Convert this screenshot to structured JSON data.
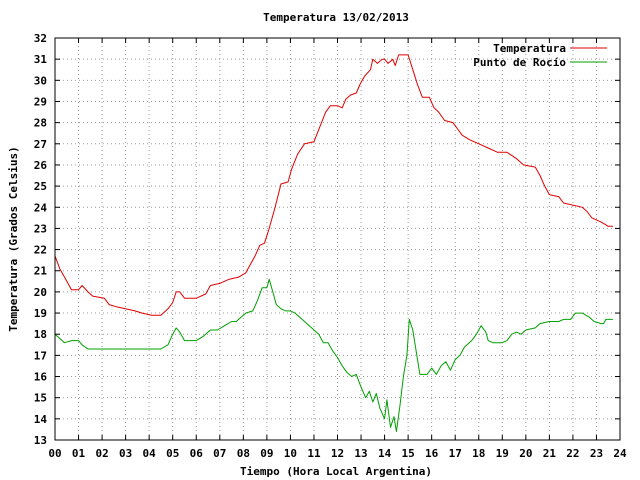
{
  "chart_data": {
    "type": "line",
    "title": "Temperatura 13/02/2013",
    "xlabel": "Tiempo (Hora Local Argentina)",
    "ylabel": "Temperatura (Grados Celsius)",
    "xlim": [
      0,
      24
    ],
    "ylim": [
      13,
      32
    ],
    "x_ticks": [
      "00",
      "01",
      "02",
      "03",
      "04",
      "05",
      "06",
      "07",
      "08",
      "09",
      "10",
      "11",
      "12",
      "13",
      "14",
      "15",
      "16",
      "17",
      "18",
      "19",
      "20",
      "21",
      "22",
      "23",
      "24"
    ],
    "y_ticks": [
      13,
      14,
      15,
      16,
      17,
      18,
      19,
      20,
      21,
      22,
      23,
      24,
      25,
      26,
      27,
      28,
      29,
      30,
      31,
      32
    ],
    "grid": true,
    "legend_position": "top-right",
    "series": [
      {
        "name": "Temperatura",
        "color": "#e00000",
        "points": [
          [
            0.0,
            21.7
          ],
          [
            0.2,
            21.1
          ],
          [
            0.5,
            20.5
          ],
          [
            0.7,
            20.1
          ],
          [
            1.0,
            20.1
          ],
          [
            1.15,
            20.3
          ],
          [
            1.4,
            20.0
          ],
          [
            1.6,
            19.8
          ],
          [
            2.1,
            19.7
          ],
          [
            2.3,
            19.4
          ],
          [
            2.6,
            19.3
          ],
          [
            3.0,
            19.2
          ],
          [
            3.4,
            19.1
          ],
          [
            3.7,
            19.0
          ],
          [
            4.1,
            18.9
          ],
          [
            4.5,
            18.9
          ],
          [
            4.8,
            19.2
          ],
          [
            5.0,
            19.5
          ],
          [
            5.15,
            20.0
          ],
          [
            5.3,
            20.0
          ],
          [
            5.5,
            19.7
          ],
          [
            6.0,
            19.7
          ],
          [
            6.4,
            19.9
          ],
          [
            6.6,
            20.3
          ],
          [
            7.0,
            20.4
          ],
          [
            7.4,
            20.6
          ],
          [
            7.8,
            20.7
          ],
          [
            8.1,
            20.9
          ],
          [
            8.3,
            21.3
          ],
          [
            8.5,
            21.7
          ],
          [
            8.7,
            22.2
          ],
          [
            8.9,
            22.3
          ],
          [
            9.1,
            23.0
          ],
          [
            9.35,
            24.0
          ],
          [
            9.6,
            25.1
          ],
          [
            9.9,
            25.2
          ],
          [
            10.05,
            25.8
          ],
          [
            10.3,
            26.5
          ],
          [
            10.6,
            27.0
          ],
          [
            11.0,
            27.1
          ],
          [
            11.25,
            27.8
          ],
          [
            11.5,
            28.5
          ],
          [
            11.7,
            28.8
          ],
          [
            12.0,
            28.8
          ],
          [
            12.2,
            28.7
          ],
          [
            12.35,
            29.1
          ],
          [
            12.55,
            29.3
          ],
          [
            12.8,
            29.4
          ],
          [
            12.95,
            29.8
          ],
          [
            13.15,
            30.2
          ],
          [
            13.4,
            30.5
          ],
          [
            13.5,
            31.0
          ],
          [
            13.7,
            30.8
          ],
          [
            13.9,
            31.0
          ],
          [
            14.0,
            31.0
          ],
          [
            14.15,
            30.8
          ],
          [
            14.35,
            31.0
          ],
          [
            14.45,
            30.7
          ],
          [
            14.6,
            31.2
          ],
          [
            15.0,
            31.2
          ],
          [
            15.2,
            30.5
          ],
          [
            15.4,
            29.8
          ],
          [
            15.6,
            29.2
          ],
          [
            15.9,
            29.2
          ],
          [
            16.1,
            28.7
          ],
          [
            16.3,
            28.5
          ],
          [
            16.55,
            28.1
          ],
          [
            16.9,
            28.0
          ],
          [
            17.1,
            27.7
          ],
          [
            17.3,
            27.4
          ],
          [
            17.6,
            27.2
          ],
          [
            18.0,
            27.0
          ],
          [
            18.4,
            26.8
          ],
          [
            18.8,
            26.6
          ],
          [
            19.2,
            26.6
          ],
          [
            19.6,
            26.3
          ],
          [
            19.9,
            26.0
          ],
          [
            20.4,
            25.9
          ],
          [
            20.6,
            25.5
          ],
          [
            20.8,
            25.0
          ],
          [
            21.0,
            24.6
          ],
          [
            21.4,
            24.5
          ],
          [
            21.6,
            24.2
          ],
          [
            22.0,
            24.1
          ],
          [
            22.4,
            24.0
          ],
          [
            22.6,
            23.8
          ],
          [
            22.8,
            23.5
          ],
          [
            23.2,
            23.3
          ],
          [
            23.5,
            23.1
          ],
          [
            23.7,
            23.1
          ]
        ]
      },
      {
        "name": "Punto de Rocío",
        "color": "#00a000",
        "points": [
          [
            0.0,
            18.0
          ],
          [
            0.2,
            17.8
          ],
          [
            0.4,
            17.6
          ],
          [
            0.7,
            17.7
          ],
          [
            1.0,
            17.7
          ],
          [
            1.15,
            17.5
          ],
          [
            1.4,
            17.3
          ],
          [
            1.8,
            17.3
          ],
          [
            2.2,
            17.3
          ],
          [
            2.5,
            17.3
          ],
          [
            3.0,
            17.3
          ],
          [
            3.5,
            17.3
          ],
          [
            4.0,
            17.3
          ],
          [
            4.5,
            17.3
          ],
          [
            4.8,
            17.5
          ],
          [
            5.0,
            18.0
          ],
          [
            5.15,
            18.3
          ],
          [
            5.3,
            18.1
          ],
          [
            5.5,
            17.7
          ],
          [
            6.0,
            17.7
          ],
          [
            6.3,
            17.9
          ],
          [
            6.6,
            18.2
          ],
          [
            6.9,
            18.2
          ],
          [
            7.2,
            18.4
          ],
          [
            7.5,
            18.6
          ],
          [
            7.7,
            18.6
          ],
          [
            7.9,
            18.8
          ],
          [
            8.1,
            19.0
          ],
          [
            8.4,
            19.1
          ],
          [
            8.6,
            19.6
          ],
          [
            8.8,
            20.2
          ],
          [
            9.0,
            20.2
          ],
          [
            9.1,
            20.6
          ],
          [
            9.25,
            20.0
          ],
          [
            9.4,
            19.4
          ],
          [
            9.6,
            19.2
          ],
          [
            9.8,
            19.1
          ],
          [
            10.0,
            19.1
          ],
          [
            10.2,
            19.0
          ],
          [
            10.4,
            18.8
          ],
          [
            10.6,
            18.6
          ],
          [
            10.8,
            18.4
          ],
          [
            11.0,
            18.2
          ],
          [
            11.2,
            18.0
          ],
          [
            11.4,
            17.6
          ],
          [
            11.6,
            17.6
          ],
          [
            11.8,
            17.2
          ],
          [
            12.0,
            16.9
          ],
          [
            12.2,
            16.5
          ],
          [
            12.4,
            16.2
          ],
          [
            12.6,
            16.0
          ],
          [
            12.8,
            16.1
          ],
          [
            13.0,
            15.5
          ],
          [
            13.2,
            15.0
          ],
          [
            13.35,
            15.3
          ],
          [
            13.5,
            14.8
          ],
          [
            13.65,
            15.2
          ],
          [
            13.8,
            14.5
          ],
          [
            14.0,
            14.0
          ],
          [
            14.1,
            14.9
          ],
          [
            14.25,
            13.6
          ],
          [
            14.4,
            14.1
          ],
          [
            14.5,
            13.4
          ],
          [
            14.65,
            14.6
          ],
          [
            14.8,
            16.0
          ],
          [
            14.95,
            17.0
          ],
          [
            15.05,
            18.7
          ],
          [
            15.2,
            18.2
          ],
          [
            15.4,
            16.8
          ],
          [
            15.5,
            16.1
          ],
          [
            15.8,
            16.1
          ],
          [
            16.0,
            16.4
          ],
          [
            16.2,
            16.1
          ],
          [
            16.4,
            16.5
          ],
          [
            16.6,
            16.7
          ],
          [
            16.8,
            16.3
          ],
          [
            17.0,
            16.8
          ],
          [
            17.2,
            17.0
          ],
          [
            17.4,
            17.4
          ],
          [
            17.7,
            17.7
          ],
          [
            17.9,
            18.0
          ],
          [
            18.1,
            18.4
          ],
          [
            18.3,
            18.1
          ],
          [
            18.4,
            17.7
          ],
          [
            18.6,
            17.6
          ],
          [
            19.0,
            17.6
          ],
          [
            19.2,
            17.7
          ],
          [
            19.4,
            18.0
          ],
          [
            19.6,
            18.1
          ],
          [
            19.8,
            18.0
          ],
          [
            20.0,
            18.2
          ],
          [
            20.4,
            18.3
          ],
          [
            20.6,
            18.5
          ],
          [
            21.0,
            18.6
          ],
          [
            21.4,
            18.6
          ],
          [
            21.6,
            18.7
          ],
          [
            21.9,
            18.7
          ],
          [
            22.1,
            19.0
          ],
          [
            22.4,
            19.0
          ],
          [
            22.7,
            18.8
          ],
          [
            22.9,
            18.6
          ],
          [
            23.2,
            18.5
          ],
          [
            23.3,
            18.5
          ],
          [
            23.4,
            18.7
          ],
          [
            23.7,
            18.7
          ]
        ]
      }
    ]
  }
}
